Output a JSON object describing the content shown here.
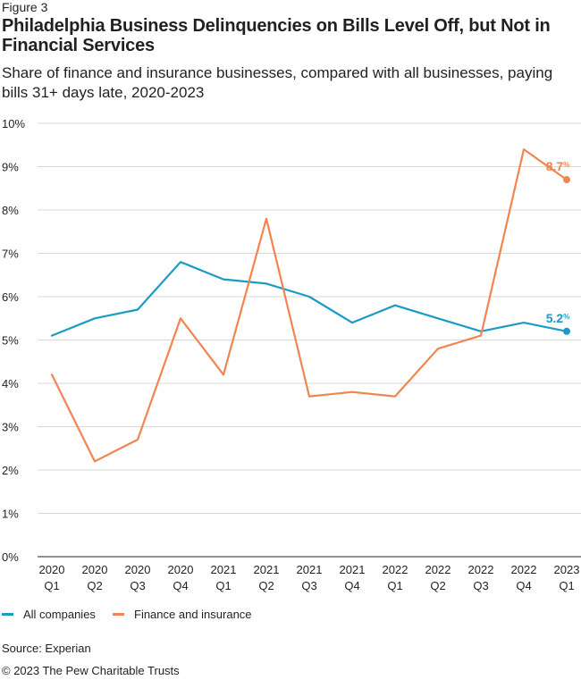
{
  "figure_label": "Figure 3",
  "title": "Philadelphia Business Delinquencies on Bills Level Off, but Not in Financial Services",
  "subtitle": "Share of finance and insurance businesses, compared with all businesses, paying bills 31+ days late, 2020-2023",
  "source": "Source: Experian",
  "copyright": "© 2023 The Pew Charitable Trusts",
  "colors": {
    "all_companies": "#1a9bc4",
    "finance": "#f08550",
    "grid": "#d9d9d9",
    "text": "#231f20"
  },
  "chart_data": {
    "type": "line",
    "categories": [
      {
        "year": "2020",
        "quarter": "Q1"
      },
      {
        "year": "2020",
        "quarter": "Q2"
      },
      {
        "year": "2020",
        "quarter": "Q3"
      },
      {
        "year": "2020",
        "quarter": "Q4"
      },
      {
        "year": "2021",
        "quarter": "Q1"
      },
      {
        "year": "2021",
        "quarter": "Q2"
      },
      {
        "year": "2021",
        "quarter": "Q3"
      },
      {
        "year": "2021",
        "quarter": "Q4"
      },
      {
        "year": "2022",
        "quarter": "Q1"
      },
      {
        "year": "2022",
        "quarter": "Q2"
      },
      {
        "year": "2022",
        "quarter": "Q3"
      },
      {
        "year": "2022",
        "quarter": "Q4"
      },
      {
        "year": "2023",
        "quarter": "Q1"
      }
    ],
    "series": [
      {
        "name": "All companies",
        "color_key": "all_companies",
        "values": [
          5.1,
          5.5,
          5.7,
          6.8,
          6.4,
          6.3,
          6.0,
          5.4,
          5.8,
          5.5,
          5.2,
          5.4,
          5.2
        ],
        "end_label": "5.2",
        "end_label_unit": "%"
      },
      {
        "name": "Finance and insurance",
        "color_key": "finance",
        "values": [
          4.2,
          2.2,
          2.7,
          5.5,
          4.2,
          7.8,
          3.7,
          3.8,
          3.7,
          4.8,
          5.1,
          9.4,
          8.7
        ],
        "end_label": "8.7",
        "end_label_unit": "%"
      }
    ],
    "y_ticks": [
      "0%",
      "1%",
      "2%",
      "3%",
      "4%",
      "5%",
      "6%",
      "7%",
      "8%",
      "9%",
      "10%"
    ],
    "ylim": [
      0,
      10
    ],
    "xlabel": "",
    "ylabel": "",
    "grid": true,
    "legend_position": "bottom-left"
  }
}
